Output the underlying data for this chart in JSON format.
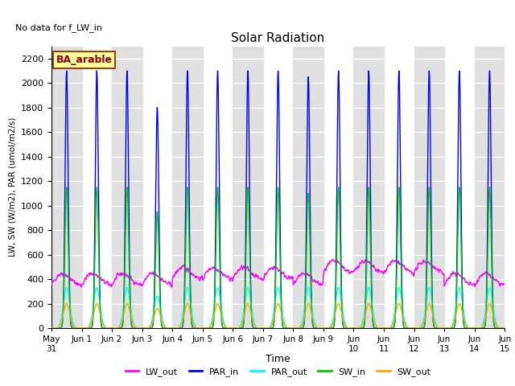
{
  "title": "Solar Radiation",
  "no_data_text": "No data for f_LW_in",
  "legend_label": "BA_arable",
  "xlabel": "Time",
  "ylabel": "LW, SW (W/m2), PAR (umol/m2/s)",
  "ylim": [
    0,
    2300
  ],
  "yticks": [
    0,
    200,
    400,
    600,
    800,
    1000,
    1200,
    1400,
    1600,
    1800,
    2000,
    2200
  ],
  "n_days": 15,
  "dt_hours": 0.25,
  "series": {
    "LW_out": {
      "color": "#ff00ff",
      "lw": 1.0
    },
    "PAR_in": {
      "color": "#0000ff",
      "lw": 1.0
    },
    "PAR_out": {
      "color": "#00ffff",
      "lw": 1.0
    },
    "SW_in": {
      "color": "#00cc00",
      "lw": 1.0
    },
    "SW_out": {
      "color": "#ffa500",
      "lw": 1.0
    }
  },
  "bg_band_color": "#e0e0e0",
  "grid_color": "#ffffff",
  "fig_bg": "#ffffff"
}
